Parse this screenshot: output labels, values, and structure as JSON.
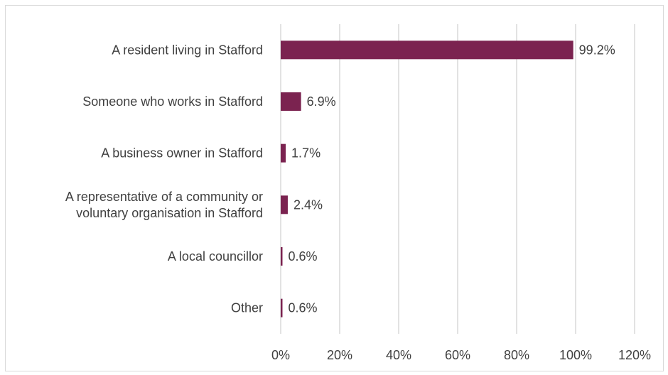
{
  "chart_data": {
    "type": "bar",
    "orientation": "horizontal",
    "categories": [
      [
        "A resident living in Stafford"
      ],
      [
        "Someone who works in Stafford"
      ],
      [
        "A business owner in Stafford"
      ],
      [
        "A representative of a community or",
        "voluntary organisation in Stafford"
      ],
      [
        "A local councillor"
      ],
      [
        "Other"
      ]
    ],
    "values": [
      99.2,
      6.9,
      1.7,
      2.4,
      0.6,
      0.6
    ],
    "value_labels": [
      "99.2%",
      "6.9%",
      "1.7%",
      "2.4%",
      "0.6%",
      "0.6%"
    ],
    "xticks": [
      "0%",
      "20%",
      "40%",
      "60%",
      "80%",
      "100%",
      "120%"
    ],
    "xlim": [
      0,
      120
    ],
    "grid": true,
    "bar_color": "#7b2350",
    "grid_color": "#d9d9d9",
    "text_color": "#404040"
  }
}
